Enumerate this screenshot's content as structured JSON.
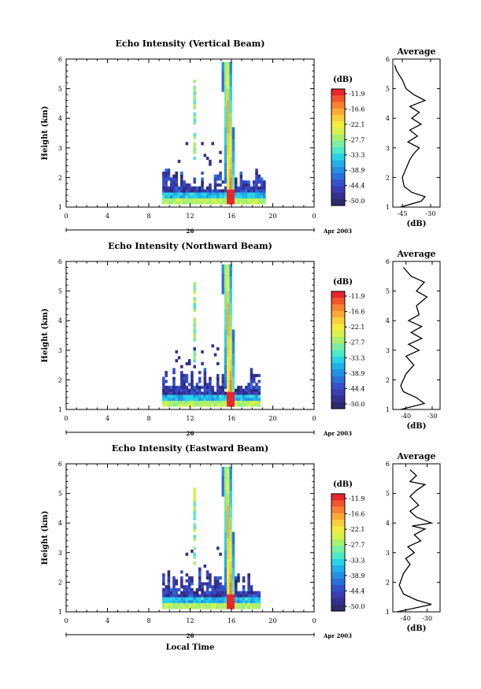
{
  "figure": {
    "xlabel": "Local Time",
    "day_label": "26",
    "month_year": "Apr 2003",
    "colorbar_unit": "(dB)",
    "colorbar_levels": [
      "-11.9",
      "-16.6",
      "-22.1",
      "-27.7",
      "-33.3",
      "-38.9",
      "-44.4",
      "-50.0"
    ],
    "colorbar_colors": [
      "#e8262b",
      "#f2552c",
      "#f98230",
      "#fba935",
      "#f9cf3b",
      "#f3ec3f",
      "#d7f34a",
      "#a9f071",
      "#7ceea1",
      "#4fe9c8",
      "#2ad2e8",
      "#21b0ea",
      "#2490e4",
      "#2a70da",
      "#3551c9",
      "#3a3cb4",
      "#323193",
      "#2d2a6e"
    ],
    "avg_title": "Average",
    "avg_xlabel": "(dB)"
  },
  "chart_data": [
    {
      "type": "heatmap",
      "title": "Echo Intensity (Vertical Beam)",
      "xlabel": "",
      "ylabel": "Height (km)",
      "x_ticks": [
        "0",
        "4",
        "8",
        "12",
        "16",
        "20",
        "0"
      ],
      "y_ticks": [
        "1",
        "2",
        "3",
        "4",
        "5",
        "6"
      ],
      "xlim": [
        0,
        24
      ],
      "ylim": [
        1,
        6
      ],
      "color_scale_dB": [
        -50.0,
        -11.9
      ],
      "echo_time_range_h": [
        9.3,
        19.2
      ],
      "peak_column_time_h": 15.8,
      "average_profile": {
        "x_ticks": [
          "-45",
          "-30"
        ],
        "xlim": [
          -50,
          -25
        ],
        "points": [
          [
            -46,
            1.0
          ],
          [
            -35,
            1.2
          ],
          [
            -33,
            1.35
          ],
          [
            -40,
            1.5
          ],
          [
            -44,
            1.7
          ],
          [
            -45,
            2.0
          ],
          [
            -43,
            2.3
          ],
          [
            -41,
            2.6
          ],
          [
            -39,
            2.8
          ],
          [
            -36,
            3.0
          ],
          [
            -42,
            3.2
          ],
          [
            -37,
            3.4
          ],
          [
            -41,
            3.6
          ],
          [
            -35,
            3.8
          ],
          [
            -40,
            4.0
          ],
          [
            -36,
            4.2
          ],
          [
            -41,
            4.4
          ],
          [
            -33,
            4.6
          ],
          [
            -39,
            4.8
          ],
          [
            -43,
            5.0
          ],
          [
            -45,
            5.3
          ],
          [
            -48,
            5.6
          ],
          [
            -49,
            5.8
          ]
        ]
      }
    },
    {
      "type": "heatmap",
      "title": "Echo Intensity (Northward Beam)",
      "xlabel": "",
      "ylabel": "Height (km)",
      "x_ticks": [
        "0",
        "4",
        "8",
        "12",
        "16",
        "20",
        "0"
      ],
      "y_ticks": [
        "1",
        "2",
        "3",
        "4",
        "5",
        "6"
      ],
      "xlim": [
        0,
        24
      ],
      "ylim": [
        1,
        6
      ],
      "color_scale_dB": [
        -50.0,
        -11.9
      ],
      "echo_time_range_h": [
        9.3,
        18.7
      ],
      "peak_column_time_h": 15.8,
      "average_profile": {
        "x_ticks": [
          "-40",
          "-30"
        ],
        "xlim": [
          -45,
          -27
        ],
        "points": [
          [
            -42,
            1.0
          ],
          [
            -33,
            1.2
          ],
          [
            -36,
            1.4
          ],
          [
            -41,
            1.6
          ],
          [
            -42,
            1.8
          ],
          [
            -40,
            2.2
          ],
          [
            -37,
            2.5
          ],
          [
            -40,
            2.8
          ],
          [
            -35,
            3.0
          ],
          [
            -39,
            3.2
          ],
          [
            -34,
            3.4
          ],
          [
            -38,
            3.6
          ],
          [
            -34,
            3.8
          ],
          [
            -39,
            4.0
          ],
          [
            -35,
            4.2
          ],
          [
            -36,
            4.5
          ],
          [
            -32,
            4.8
          ],
          [
            -36,
            5.0
          ],
          [
            -33,
            5.3
          ],
          [
            -38,
            5.5
          ],
          [
            -41,
            5.8
          ]
        ]
      }
    },
    {
      "type": "heatmap",
      "title": "Echo Intensity (Eastward Beam)",
      "xlabel": "Local Time",
      "ylabel": "Height (km)",
      "x_ticks": [
        "0",
        "4",
        "8",
        "12",
        "16",
        "20",
        "0"
      ],
      "y_ticks": [
        "1",
        "2",
        "3",
        "4",
        "5",
        "6"
      ],
      "xlim": [
        0,
        24
      ],
      "ylim": [
        1,
        6
      ],
      "color_scale_dB": [
        -50.0,
        -11.9
      ],
      "echo_time_range_h": [
        9.3,
        18.7
      ],
      "peak_column_time_h": 15.8,
      "average_profile": {
        "x_ticks": [
          "-40",
          "-30"
        ],
        "xlim": [
          -46,
          -24
        ],
        "points": [
          [
            -44,
            1.0
          ],
          [
            -28,
            1.25
          ],
          [
            -35,
            1.4
          ],
          [
            -41,
            1.6
          ],
          [
            -43,
            1.9
          ],
          [
            -41,
            2.3
          ],
          [
            -38,
            2.6
          ],
          [
            -40,
            2.8
          ],
          [
            -36,
            3.0
          ],
          [
            -39,
            3.2
          ],
          [
            -33,
            3.4
          ],
          [
            -36,
            3.6
          ],
          [
            -31,
            3.8
          ],
          [
            -37,
            3.9
          ],
          [
            -28,
            4.0
          ],
          [
            -35,
            4.2
          ],
          [
            -38,
            4.4
          ],
          [
            -34,
            4.6
          ],
          [
            -38,
            4.9
          ],
          [
            -35,
            5.1
          ],
          [
            -31,
            5.3
          ],
          [
            -38,
            5.4
          ],
          [
            -35,
            5.6
          ],
          [
            -38,
            5.8
          ]
        ]
      }
    }
  ]
}
